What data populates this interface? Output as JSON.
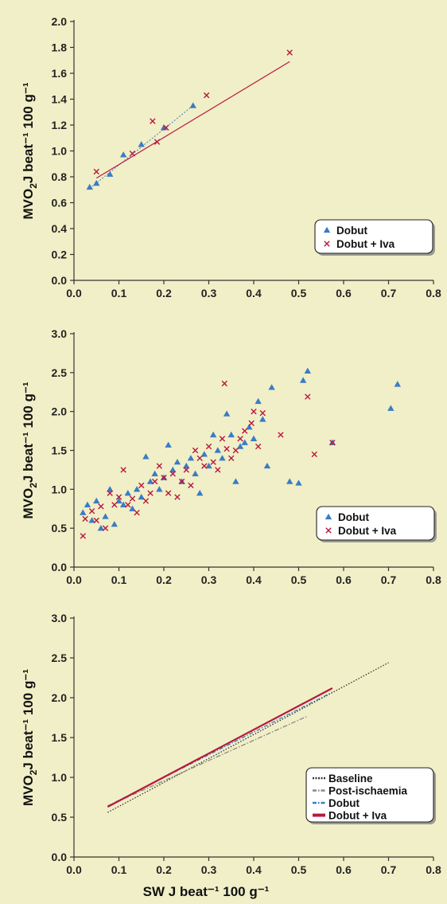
{
  "colors": {
    "background": "#f1efc7",
    "dobut": "#3a7cc6",
    "iva": "#b8183f",
    "baseline": "#333333",
    "postisch": "#888888"
  },
  "ylabel_main": "MVO",
  "ylabel_sub": "2",
  "ylabel_rest": "J beat⁻¹ 100 g⁻¹",
  "chart_data": [
    {
      "type": "scatter",
      "xlim": [
        0.0,
        0.8
      ],
      "ylim": [
        0.0,
        2.0
      ],
      "xticks": [
        "0.0",
        "0.1",
        "0.2",
        "0.3",
        "0.4",
        "0.5",
        "0.6",
        "0.7",
        "0.8"
      ],
      "yticks": [
        "0.0",
        "0.2",
        "0.4",
        "0.6",
        "0.8",
        "1.0",
        "1.2",
        "1.4",
        "1.6",
        "1.8",
        "2.0"
      ],
      "ylabel": "MVO2 J beat⁻¹ 100 g⁻¹",
      "legend": "bottom-right",
      "series": [
        {
          "name": "Dobut",
          "marker": "triangle",
          "points": [
            [
              0.035,
              0.72
            ],
            [
              0.05,
              0.75
            ],
            [
              0.08,
              0.82
            ],
            [
              0.11,
              0.97
            ],
            [
              0.15,
              1.05
            ],
            [
              0.2,
              1.18
            ],
            [
              0.265,
              1.35
            ]
          ],
          "fit": [
            [
              0.035,
              0.71
            ],
            [
              0.265,
              1.35
            ]
          ]
        },
        {
          "name": "Dobut + Iva",
          "marker": "cross",
          "points": [
            [
              0.05,
              0.84
            ],
            [
              0.13,
              0.98
            ],
            [
              0.175,
              1.23
            ],
            [
              0.185,
              1.07
            ],
            [
              0.205,
              1.18
            ],
            [
              0.295,
              1.43
            ],
            [
              0.48,
              1.76
            ]
          ],
          "fit": [
            [
              0.05,
              0.79
            ],
            [
              0.48,
              1.69
            ]
          ]
        }
      ]
    },
    {
      "type": "scatter",
      "xlim": [
        0.0,
        0.8
      ],
      "ylim": [
        0.0,
        3.0
      ],
      "xticks": [
        "0.0",
        "0.1",
        "0.2",
        "0.3",
        "0.4",
        "0.5",
        "0.6",
        "0.7",
        "0.8"
      ],
      "yticks": [
        "0.0",
        "0.5",
        "1.0",
        "1.5",
        "2.0",
        "2.5",
        "3.0"
      ],
      "ylabel": "MVO2 J beat⁻¹ 100 g⁻¹",
      "legend": "bottom-right",
      "series": [
        {
          "name": "Dobut",
          "marker": "triangle",
          "points": [
            [
              0.02,
              0.7
            ],
            [
              0.03,
              0.8
            ],
            [
              0.04,
              0.6
            ],
            [
              0.05,
              0.85
            ],
            [
              0.06,
              0.5
            ],
            [
              0.07,
              0.65
            ],
            [
              0.08,
              1.0
            ],
            [
              0.09,
              0.55
            ],
            [
              0.1,
              0.85
            ],
            [
              0.11,
              0.8
            ],
            [
              0.12,
              0.95
            ],
            [
              0.13,
              0.75
            ],
            [
              0.14,
              1.0
            ],
            [
              0.15,
              0.9
            ],
            [
              0.16,
              1.42
            ],
            [
              0.17,
              1.1
            ],
            [
              0.18,
              1.2
            ],
            [
              0.19,
              1.0
            ],
            [
              0.2,
              1.15
            ],
            [
              0.21,
              1.57
            ],
            [
              0.22,
              1.25
            ],
            [
              0.23,
              1.35
            ],
            [
              0.24,
              1.1
            ],
            [
              0.25,
              1.3
            ],
            [
              0.26,
              1.4
            ],
            [
              0.27,
              1.2
            ],
            [
              0.28,
              0.95
            ],
            [
              0.29,
              1.45
            ],
            [
              0.3,
              1.3
            ],
            [
              0.31,
              1.7
            ],
            [
              0.32,
              1.5
            ],
            [
              0.33,
              1.4
            ],
            [
              0.34,
              1.97
            ],
            [
              0.35,
              1.7
            ],
            [
              0.36,
              1.1
            ],
            [
              0.37,
              1.55
            ],
            [
              0.38,
              1.6
            ],
            [
              0.39,
              1.8
            ],
            [
              0.4,
              1.65
            ],
            [
              0.41,
              2.13
            ],
            [
              0.42,
              1.9
            ],
            [
              0.43,
              1.3
            ],
            [
              0.44,
              2.31
            ],
            [
              0.48,
              1.1
            ],
            [
              0.5,
              1.08
            ],
            [
              0.51,
              2.4
            ],
            [
              0.52,
              2.52
            ],
            [
              0.575,
              1.6
            ],
            [
              0.705,
              2.04
            ],
            [
              0.72,
              2.35
            ]
          ]
        },
        {
          "name": "Dobut + Iva",
          "marker": "cross",
          "points": [
            [
              0.02,
              0.4
            ],
            [
              0.025,
              0.62
            ],
            [
              0.04,
              0.72
            ],
            [
              0.05,
              0.6
            ],
            [
              0.06,
              0.78
            ],
            [
              0.07,
              0.5
            ],
            [
              0.08,
              0.95
            ],
            [
              0.09,
              0.8
            ],
            [
              0.1,
              0.9
            ],
            [
              0.11,
              1.25
            ],
            [
              0.12,
              0.8
            ],
            [
              0.13,
              0.88
            ],
            [
              0.14,
              0.7
            ],
            [
              0.15,
              1.05
            ],
            [
              0.16,
              0.85
            ],
            [
              0.17,
              0.95
            ],
            [
              0.18,
              1.1
            ],
            [
              0.19,
              1.3
            ],
            [
              0.2,
              1.15
            ],
            [
              0.21,
              0.95
            ],
            [
              0.22,
              1.2
            ],
            [
              0.23,
              0.9
            ],
            [
              0.24,
              1.1
            ],
            [
              0.25,
              1.25
            ],
            [
              0.26,
              1.05
            ],
            [
              0.27,
              1.5
            ],
            [
              0.28,
              1.4
            ],
            [
              0.29,
              1.3
            ],
            [
              0.3,
              1.55
            ],
            [
              0.31,
              1.35
            ],
            [
              0.32,
              1.25
            ],
            [
              0.33,
              1.65
            ],
            [
              0.335,
              2.36
            ],
            [
              0.34,
              1.52
            ],
            [
              0.35,
              1.4
            ],
            [
              0.36,
              1.5
            ],
            [
              0.37,
              1.65
            ],
            [
              0.38,
              1.75
            ],
            [
              0.395,
              1.85
            ],
            [
              0.4,
              2.0
            ],
            [
              0.41,
              1.55
            ],
            [
              0.42,
              1.98
            ],
            [
              0.46,
              1.7
            ],
            [
              0.52,
              2.19
            ],
            [
              0.535,
              1.45
            ],
            [
              0.575,
              1.6
            ]
          ]
        }
      ]
    },
    {
      "type": "line",
      "xlim": [
        0.0,
        0.8
      ],
      "ylim": [
        0.0,
        3.0
      ],
      "xticks": [
        "0.0",
        "0.1",
        "0.2",
        "0.3",
        "0.4",
        "0.5",
        "0.6",
        "0.7",
        "0.8"
      ],
      "yticks": [
        "0.0",
        "0.5",
        "1.0",
        "1.5",
        "2.0",
        "2.5",
        "3.0"
      ],
      "xlabel": "SW J beat⁻¹  100 g⁻¹",
      "ylabel": "MVO2 J beat⁻¹ 100 g⁻¹",
      "legend": "bottom-right",
      "series": [
        {
          "name": "Baseline",
          "style": "dotted",
          "points": [
            [
              0.075,
              0.56
            ],
            [
              0.7,
              2.44
            ]
          ]
        },
        {
          "name": "Post-ischaemia",
          "style": "dashdot",
          "points": [
            [
              0.075,
              0.64
            ],
            [
              0.52,
              1.77
            ]
          ]
        },
        {
          "name": "Dobut",
          "style": "dashdot-blue",
          "points": [
            [
              0.075,
              0.64
            ],
            [
              0.575,
              2.07
            ]
          ]
        },
        {
          "name": "Dobut + Iva",
          "style": "solid",
          "points": [
            [
              0.075,
              0.63
            ],
            [
              0.575,
              2.12
            ]
          ]
        }
      ]
    }
  ]
}
